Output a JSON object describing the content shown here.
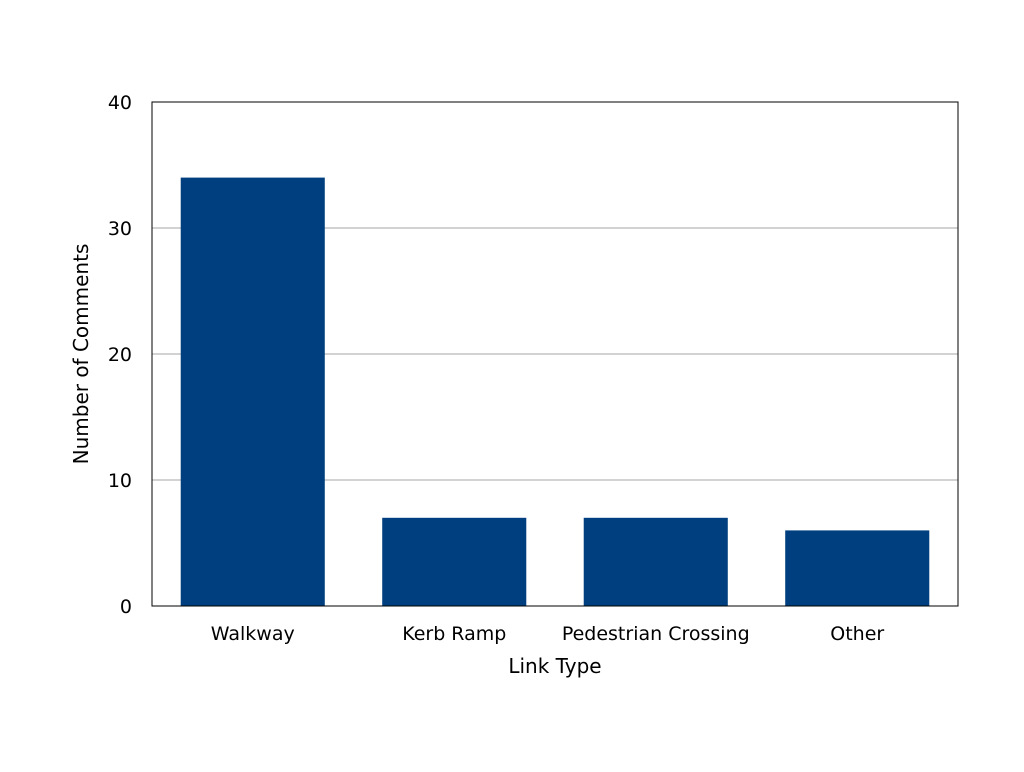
{
  "chart_data": {
    "type": "bar",
    "categories": [
      "Walkway",
      "Kerb Ramp",
      "Pedestrian Crossing",
      "Other"
    ],
    "values": [
      34,
      7,
      7,
      6
    ],
    "xlabel": "Link Type",
    "ylabel": "Number of Comments",
    "ylim": [
      0,
      40
    ],
    "yticks": [
      0,
      10,
      20,
      30,
      40
    ],
    "grid": "horizontal",
    "bar_color": "#003f7f",
    "gridline_color": "#a6a6a6"
  }
}
